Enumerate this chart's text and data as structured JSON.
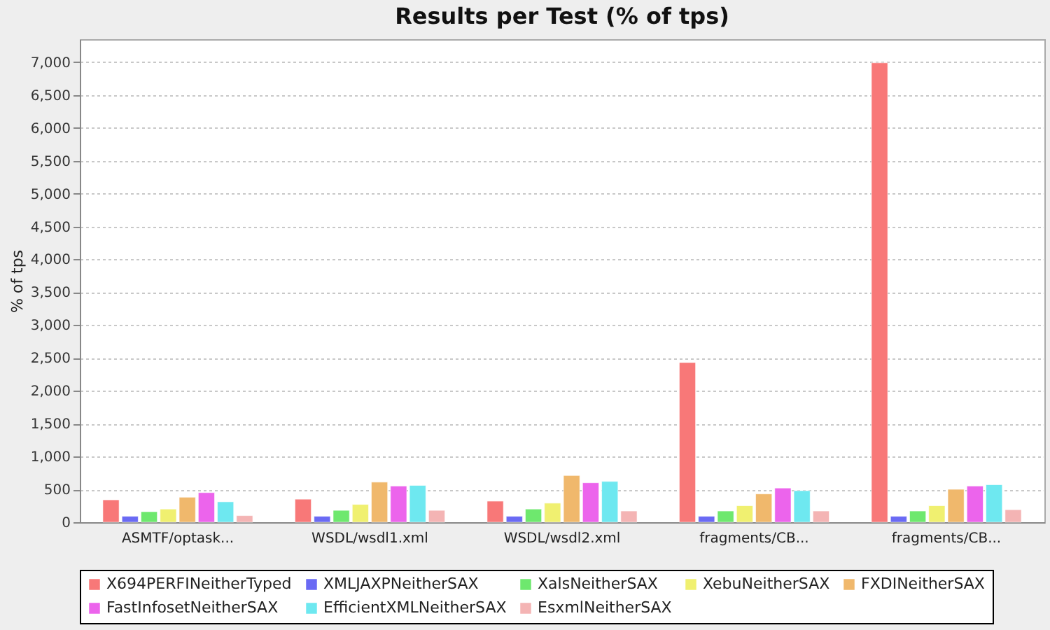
{
  "chart_data": {
    "type": "bar",
    "title": "Results per Test (% of tps)",
    "ylabel": "% of tps",
    "categories": [
      "ASMTF/optask...",
      "WSDL/wsdl1.xml",
      "WSDL/wsdl2.xml",
      "fragments/CB...",
      "fragments/CB..."
    ],
    "series": [
      {
        "name": "X694PERFINeitherTyped",
        "color": "#f87878",
        "values": [
          340,
          350,
          320,
          2430,
          6990
        ]
      },
      {
        "name": "XMLJAXPNeitherSAX",
        "color": "#6a6af4",
        "values": [
          90,
          90,
          90,
          90,
          90
        ]
      },
      {
        "name": "XalsNeitherSAX",
        "color": "#6ee86e",
        "values": [
          160,
          180,
          200,
          170,
          170
        ]
      },
      {
        "name": "XebuNeitherSAX",
        "color": "#f0f070",
        "values": [
          200,
          270,
          290,
          250,
          250
        ]
      },
      {
        "name": "FXDINeitherSAX",
        "color": "#f0b86c",
        "values": [
          380,
          610,
          710,
          430,
          500
        ]
      },
      {
        "name": "FastInfosetNeitherSAX",
        "color": "#ec64ec",
        "values": [
          450,
          550,
          600,
          520,
          550
        ]
      },
      {
        "name": "EfficientXMLNeitherSAX",
        "color": "#6ee8f0",
        "values": [
          310,
          560,
          620,
          480,
          570
        ]
      },
      {
        "name": "EsxmlNeitherSAX",
        "color": "#f4b4b4",
        "values": [
          100,
          180,
          170,
          170,
          190
        ]
      }
    ],
    "ylim": [
      0,
      7350
    ],
    "yticks": [
      0,
      {
        "value": 500,
        "label": "500"
      },
      {
        "value": 1000,
        "label": "1,000"
      },
      {
        "value": 1500,
        "label": "1,500"
      },
      {
        "value": 2000,
        "label": "2,000"
      },
      {
        "value": 2500,
        "label": "2,500"
      },
      {
        "value": 3000,
        "label": "3,000"
      },
      {
        "value": 3500,
        "label": "3,500"
      },
      {
        "value": 4000,
        "label": "4,000"
      },
      {
        "value": 4500,
        "label": "4,500"
      },
      {
        "value": 5000,
        "label": "5,000"
      },
      {
        "value": 5500,
        "label": "5,500"
      },
      {
        "value": 6000,
        "label": "6,000"
      },
      {
        "value": 6500,
        "label": "6,500"
      },
      {
        "value": 7000,
        "label": "7,000"
      }
    ],
    "grid": "y",
    "legend": "bottom"
  }
}
